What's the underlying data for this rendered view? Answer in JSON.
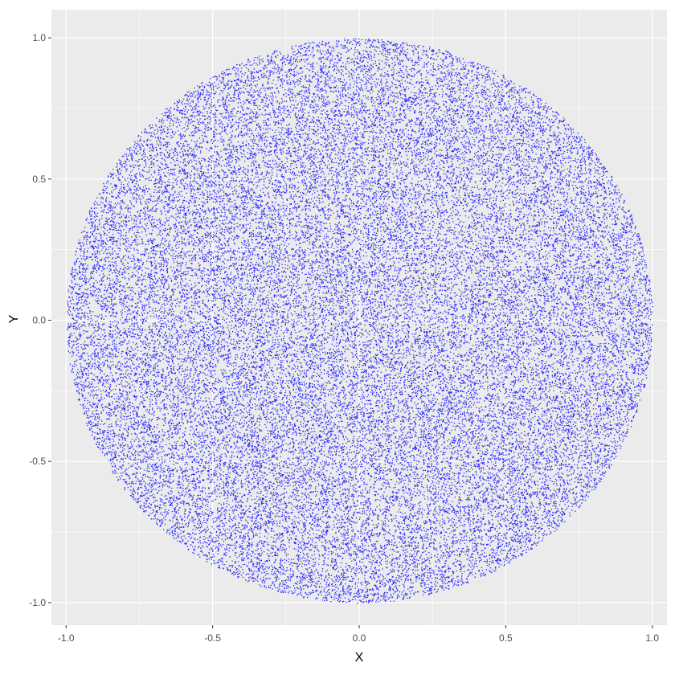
{
  "chart_data": {
    "type": "scatter",
    "xlabel": "X",
    "ylabel": "Y",
    "xlim": [
      -1.05,
      1.05
    ],
    "ylim": [
      -1.08,
      1.1
    ],
    "x_ticks": [
      -1.0,
      -0.5,
      0.0,
      0.5,
      1.0
    ],
    "y_ticks": [
      -1.0,
      -0.5,
      0.0,
      0.5,
      1.0
    ],
    "x_tick_labels": [
      "-1.0",
      "-0.5",
      "0.0",
      "0.5",
      "1.0"
    ],
    "y_tick_labels": [
      "-1.0",
      "-0.5",
      "0.0",
      "0.5",
      "1.0"
    ],
    "grid": true,
    "legend": "none",
    "series": [
      {
        "shape": "unit-disk",
        "center": [
          0,
          0
        ],
        "radius": 1.0,
        "distribution": "uniform",
        "color": "#0000ff"
      }
    ]
  },
  "theme": {
    "panel_background": "#ebebeb",
    "grid_color": "#ffffff",
    "point_color": "#0000ff"
  }
}
